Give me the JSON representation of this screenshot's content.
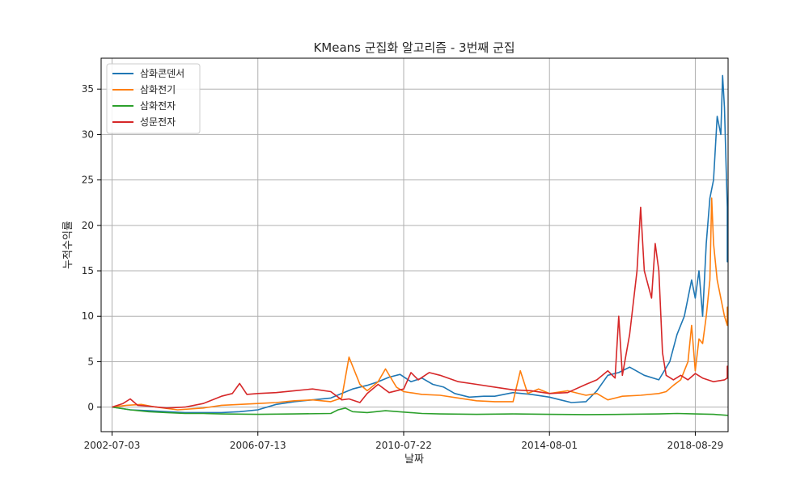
{
  "chart_data": {
    "type": "line",
    "title": "KMeans 군집화 알고리즘 - 3번째 군집",
    "xlabel": "날짜",
    "ylabel": "누적수익률",
    "xlim": [
      -0.3,
      16.9
    ],
    "ylim": [
      -2.7,
      38.4
    ],
    "grid": true,
    "legend_position": "top-left",
    "x_ticks": [
      {
        "value": 0,
        "label": "2002-07-03"
      },
      {
        "value": 4,
        "label": "2006-07-13"
      },
      {
        "value": 8,
        "label": "2010-07-22"
      },
      {
        "value": 12,
        "label": "2014-08-01"
      },
      {
        "value": 16,
        "label": "2018-08-29"
      }
    ],
    "y_ticks": [
      0,
      5,
      10,
      15,
      20,
      25,
      30,
      35
    ],
    "series": [
      {
        "name": "삼화콘덴서",
        "color": "#1f77b4",
        "points": [
          [
            0,
            0
          ],
          [
            0.5,
            -0.3
          ],
          [
            1,
            -0.4
          ],
          [
            1.5,
            -0.5
          ],
          [
            2,
            -0.6
          ],
          [
            2.5,
            -0.6
          ],
          [
            3,
            -0.6
          ],
          [
            3.5,
            -0.5
          ],
          [
            4,
            -0.3
          ],
          [
            4.5,
            0.3
          ],
          [
            5,
            0.6
          ],
          [
            5.5,
            0.8
          ],
          [
            6,
            1
          ],
          [
            6.3,
            1.5
          ],
          [
            6.6,
            2
          ],
          [
            7,
            2.4
          ],
          [
            7.3,
            2.8
          ],
          [
            7.6,
            3.3
          ],
          [
            7.9,
            3.6
          ],
          [
            8.2,
            2.8
          ],
          [
            8.5,
            3.2
          ],
          [
            8.8,
            2.5
          ],
          [
            9.1,
            2.2
          ],
          [
            9.4,
            1.5
          ],
          [
            9.8,
            1.1
          ],
          [
            10.2,
            1.2
          ],
          [
            10.5,
            1.2
          ],
          [
            11,
            1.6
          ],
          [
            11.5,
            1.4
          ],
          [
            12,
            1.1
          ],
          [
            12.3,
            0.8
          ],
          [
            12.6,
            0.5
          ],
          [
            13,
            0.6
          ],
          [
            13.3,
            1.8
          ],
          [
            13.6,
            3.5
          ],
          [
            13.9,
            3.8
          ],
          [
            14.2,
            4.4
          ],
          [
            14.6,
            3.5
          ],
          [
            15,
            3
          ],
          [
            15.3,
            5
          ],
          [
            15.5,
            8
          ],
          [
            15.7,
            10
          ],
          [
            15.9,
            14
          ],
          [
            16,
            12
          ],
          [
            16.1,
            15
          ],
          [
            16.2,
            10
          ],
          [
            16.3,
            18
          ],
          [
            16.4,
            23
          ],
          [
            16.5,
            25
          ],
          [
            16.6,
            32
          ],
          [
            16.7,
            30
          ],
          [
            16.75,
            36.5
          ],
          [
            16.8,
            33
          ],
          [
            16.85,
            26
          ],
          [
            16.9,
            22
          ],
          [
            16.95,
            20
          ],
          [
            17,
            18
          ],
          [
            17.05,
            16
          ],
          [
            17.1,
            19
          ],
          [
            17.2,
            22
          ],
          [
            17.3,
            21.5
          ]
        ]
      },
      {
        "name": "삼화전기",
        "color": "#ff7f0e",
        "points": [
          [
            0,
            0
          ],
          [
            0.4,
            0.2
          ],
          [
            0.8,
            0.3
          ],
          [
            1.2,
            0
          ],
          [
            1.8,
            -0.3
          ],
          [
            2.5,
            -0.1
          ],
          [
            3,
            0.2
          ],
          [
            3.5,
            0.3
          ],
          [
            4,
            0.4
          ],
          [
            4.5,
            0.5
          ],
          [
            5,
            0.7
          ],
          [
            5.5,
            0.8
          ],
          [
            6,
            0.6
          ],
          [
            6.3,
            1
          ],
          [
            6.5,
            5.5
          ],
          [
            6.8,
            2.5
          ],
          [
            7,
            1.8
          ],
          [
            7.3,
            2.8
          ],
          [
            7.5,
            4.2
          ],
          [
            7.8,
            2.2
          ],
          [
            8,
            1.7
          ],
          [
            8.5,
            1.4
          ],
          [
            9,
            1.3
          ],
          [
            9.5,
            1
          ],
          [
            10,
            0.7
          ],
          [
            10.5,
            0.6
          ],
          [
            11,
            0.6
          ],
          [
            11.2,
            4
          ],
          [
            11.4,
            1.5
          ],
          [
            11.7,
            2
          ],
          [
            12,
            1.5
          ],
          [
            12.5,
            1.8
          ],
          [
            13,
            1.3
          ],
          [
            13.3,
            1.5
          ],
          [
            13.6,
            0.8
          ],
          [
            14,
            1.2
          ],
          [
            14.5,
            1.3
          ],
          [
            15,
            1.5
          ],
          [
            15.2,
            1.7
          ],
          [
            15.4,
            2.4
          ],
          [
            15.6,
            3
          ],
          [
            15.8,
            5
          ],
          [
            15.9,
            9
          ],
          [
            16,
            4
          ],
          [
            16.1,
            7.5
          ],
          [
            16.2,
            7
          ],
          [
            16.3,
            10
          ],
          [
            16.4,
            14
          ],
          [
            16.45,
            23
          ],
          [
            16.5,
            18
          ],
          [
            16.6,
            14
          ],
          [
            16.7,
            12
          ],
          [
            16.8,
            10
          ],
          [
            16.9,
            9
          ],
          [
            17,
            9.5
          ],
          [
            17.1,
            11
          ],
          [
            17.2,
            10
          ]
        ]
      },
      {
        "name": "삼화전자",
        "color": "#2ca02c",
        "points": [
          [
            0,
            0
          ],
          [
            0.5,
            -0.3
          ],
          [
            1,
            -0.5
          ],
          [
            1.5,
            -0.6
          ],
          [
            2,
            -0.7
          ],
          [
            2.5,
            -0.7
          ],
          [
            3,
            -0.75
          ],
          [
            4,
            -0.8
          ],
          [
            5,
            -0.75
          ],
          [
            6,
            -0.7
          ],
          [
            6.2,
            -0.3
          ],
          [
            6.4,
            -0.1
          ],
          [
            6.6,
            -0.5
          ],
          [
            7,
            -0.6
          ],
          [
            7.5,
            -0.4
          ],
          [
            8,
            -0.55
          ],
          [
            8.5,
            -0.7
          ],
          [
            9,
            -0.75
          ],
          [
            10,
            -0.8
          ],
          [
            11,
            -0.75
          ],
          [
            12,
            -0.8
          ],
          [
            13,
            -0.82
          ],
          [
            14,
            -0.8
          ],
          [
            15,
            -0.75
          ],
          [
            15.5,
            -0.7
          ],
          [
            16,
            -0.75
          ],
          [
            16.5,
            -0.8
          ],
          [
            17,
            -0.9
          ],
          [
            17.2,
            -0.85
          ]
        ]
      },
      {
        "name": "성문전자",
        "color": "#d62728",
        "points": [
          [
            0,
            0
          ],
          [
            0.3,
            0.4
          ],
          [
            0.5,
            0.9
          ],
          [
            0.7,
            0.2
          ],
          [
            1,
            0.1
          ],
          [
            1.5,
            -0.1
          ],
          [
            2,
            0
          ],
          [
            2.5,
            0.4
          ],
          [
            3,
            1.2
          ],
          [
            3.3,
            1.5
          ],
          [
            3.5,
            2.6
          ],
          [
            3.7,
            1.4
          ],
          [
            4,
            1.5
          ],
          [
            4.5,
            1.6
          ],
          [
            5,
            1.8
          ],
          [
            5.5,
            2
          ],
          [
            6,
            1.7
          ],
          [
            6.3,
            0.8
          ],
          [
            6.5,
            0.9
          ],
          [
            6.8,
            0.5
          ],
          [
            7,
            1.5
          ],
          [
            7.3,
            2.5
          ],
          [
            7.6,
            1.6
          ],
          [
            8,
            2
          ],
          [
            8.2,
            3.8
          ],
          [
            8.4,
            3
          ],
          [
            8.7,
            3.8
          ],
          [
            9,
            3.5
          ],
          [
            9.5,
            2.8
          ],
          [
            10,
            2.5
          ],
          [
            10.5,
            2.2
          ],
          [
            11,
            1.9
          ],
          [
            11.5,
            1.8
          ],
          [
            12,
            1.5
          ],
          [
            12.5,
            1.6
          ],
          [
            13,
            2.5
          ],
          [
            13.3,
            3
          ],
          [
            13.6,
            4
          ],
          [
            13.8,
            3.2
          ],
          [
            13.9,
            10
          ],
          [
            14,
            3.5
          ],
          [
            14.2,
            8
          ],
          [
            14.4,
            15
          ],
          [
            14.5,
            22
          ],
          [
            14.6,
            15
          ],
          [
            14.8,
            12
          ],
          [
            14.9,
            18
          ],
          [
            15,
            15
          ],
          [
            15.1,
            6
          ],
          [
            15.2,
            3.5
          ],
          [
            15.4,
            3
          ],
          [
            15.6,
            3.5
          ],
          [
            15.8,
            3
          ],
          [
            16,
            3.7
          ],
          [
            16.2,
            3.2
          ],
          [
            16.5,
            2.8
          ],
          [
            16.8,
            3
          ],
          [
            17,
            3.2
          ],
          [
            17.1,
            4.5
          ],
          [
            17.2,
            4.2
          ]
        ]
      }
    ]
  }
}
